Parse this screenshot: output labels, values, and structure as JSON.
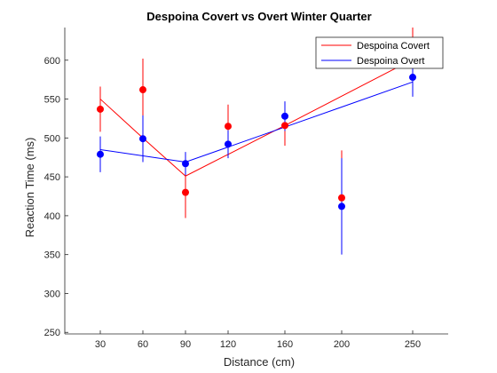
{
  "chart_data": {
    "type": "line",
    "title": "Despoina Covert vs Overt Winter Quarter",
    "xlabel": "Distance (cm)",
    "ylabel": "Reaction Time (ms)",
    "xlim": [
      5,
      275
    ],
    "ylim": [
      248,
      642
    ],
    "xticks": [
      30,
      60,
      90,
      120,
      160,
      200,
      250
    ],
    "yticks": [
      250,
      300,
      350,
      400,
      450,
      500,
      550,
      600
    ],
    "grid": false,
    "legend_position": "top-right",
    "series": [
      {
        "name": "Despoina Covert",
        "color": "#ff0000",
        "fit_x": [
          30,
          60,
          90,
          160,
          250
        ],
        "fit_y": [
          550,
          500,
          451,
          516,
          601
        ],
        "points": [
          {
            "x": 30,
            "y": 537,
            "err_low": 508,
            "err_high": 566
          },
          {
            "x": 60,
            "y": 562,
            "err_low": 522,
            "err_high": 602
          },
          {
            "x": 90,
            "y": 430,
            "err_low": 397,
            "err_high": 463
          },
          {
            "x": 120,
            "y": 515,
            "err_low": 486,
            "err_high": 543
          },
          {
            "x": 160,
            "y": 516,
            "err_low": 490,
            "err_high": 542
          },
          {
            "x": 200,
            "y": 423,
            "err_low": 362,
            "err_high": 484
          },
          {
            "x": 250,
            "y": 618,
            "err_low": 594,
            "err_high": 642
          }
        ]
      },
      {
        "name": "Despoina Overt",
        "color": "#0000ff",
        "fit_x": [
          30,
          90,
          160,
          250
        ],
        "fit_y": [
          485,
          469,
          514,
          572
        ],
        "points": [
          {
            "x": 30,
            "y": 479,
            "err_low": 456,
            "err_high": 502
          },
          {
            "x": 60,
            "y": 499,
            "err_low": 469,
            "err_high": 529
          },
          {
            "x": 90,
            "y": 467,
            "err_low": 452,
            "err_high": 482
          },
          {
            "x": 120,
            "y": 492,
            "err_low": 474,
            "err_high": 510
          },
          {
            "x": 160,
            "y": 528,
            "err_low": 509,
            "err_high": 547
          },
          {
            "x": 200,
            "y": 412,
            "err_low": 350,
            "err_high": 474
          },
          {
            "x": 250,
            "y": 578,
            "err_low": 553,
            "err_high": 603
          }
        ]
      }
    ]
  }
}
